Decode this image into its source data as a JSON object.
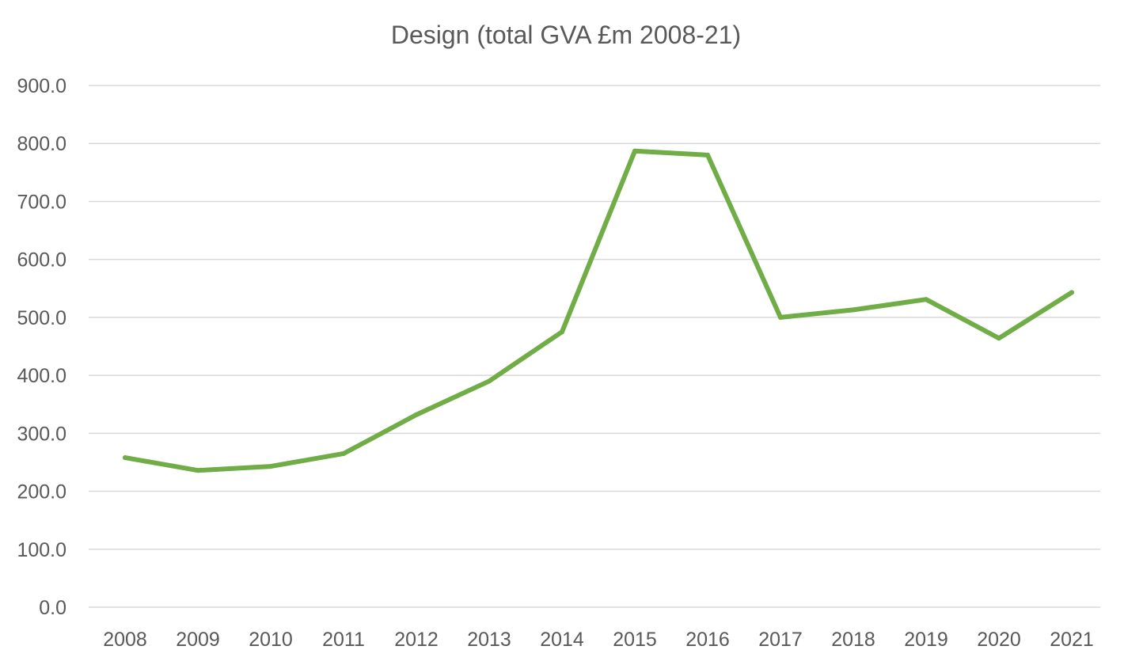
{
  "chart_data": {
    "type": "line",
    "title": "Design (total GVA £m 2008-21)",
    "xlabel": "",
    "ylabel": "",
    "categories": [
      "2008",
      "2009",
      "2010",
      "2011",
      "2012",
      "2013",
      "2014",
      "2015",
      "2016",
      "2017",
      "2018",
      "2019",
      "2020",
      "2021"
    ],
    "series": [
      {
        "name": "Design",
        "color": "#70ad47",
        "values": [
          258,
          236,
          243,
          265,
          332,
          390,
          475,
          787,
          780,
          500,
          513,
          531,
          464,
          543
        ]
      }
    ],
    "ylim": [
      0,
      900
    ],
    "yticks": [
      "0.0",
      "100.0",
      "200.0",
      "300.0",
      "400.0",
      "500.0",
      "600.0",
      "700.0",
      "800.0",
      "900.0"
    ],
    "grid": true,
    "legend": "none"
  }
}
